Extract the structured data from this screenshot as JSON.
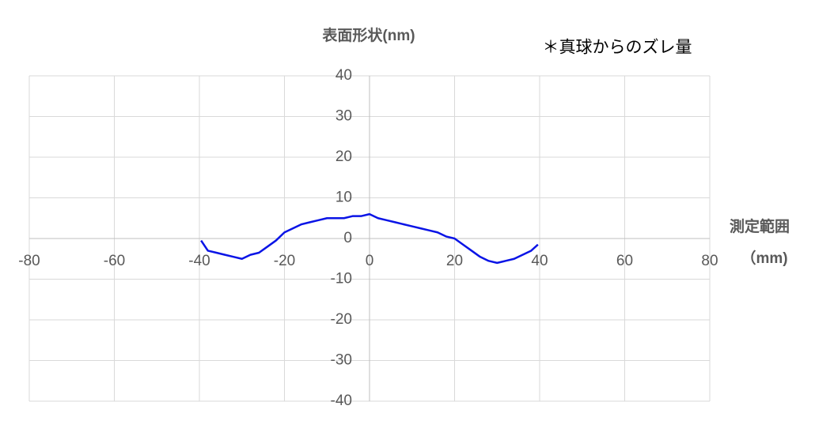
{
  "chart_data": {
    "type": "line",
    "title": "表面形状(nm)",
    "annotation": "＊真球からのズレ量",
    "x_label": [
      "測定範囲",
      "（mm)"
    ],
    "x": [
      -39.6,
      -38,
      -36,
      -34,
      -32,
      -30,
      -28,
      -26,
      -24,
      -22,
      -20,
      -18,
      -16,
      -14,
      -12,
      -10,
      -8,
      -6,
      -4,
      -2,
      0,
      2,
      4,
      6,
      8,
      10,
      12,
      14,
      16,
      18,
      20,
      22,
      24,
      26,
      28,
      30,
      32,
      34,
      36,
      38,
      39.6
    ],
    "series": [
      {
        "name": "表面形状",
        "color": "#0a14e6",
        "values": [
          -0.5,
          -3,
          -3.5,
          -4,
          -4.5,
          -5,
          -4,
          -3.5,
          -2,
          -0.5,
          1.5,
          2.5,
          3.5,
          4,
          4.5,
          5,
          5,
          5,
          5.5,
          5.5,
          6,
          5,
          4.5,
          4,
          3.5,
          3,
          2.5,
          2,
          1.5,
          0.5,
          0,
          -1.5,
          -3,
          -4.5,
          -5.5,
          -6,
          -5.5,
          -5,
          -4,
          -3,
          -1.5
        ]
      }
    ],
    "xlim": [
      -80,
      80
    ],
    "xticks": [
      -80,
      -60,
      -40,
      -20,
      0,
      20,
      40,
      60,
      80
    ],
    "ylim": [
      -40,
      40
    ],
    "yticks": [
      -40,
      -30,
      -20,
      -10,
      0,
      10,
      20,
      30,
      40
    ],
    "grid": true
  }
}
